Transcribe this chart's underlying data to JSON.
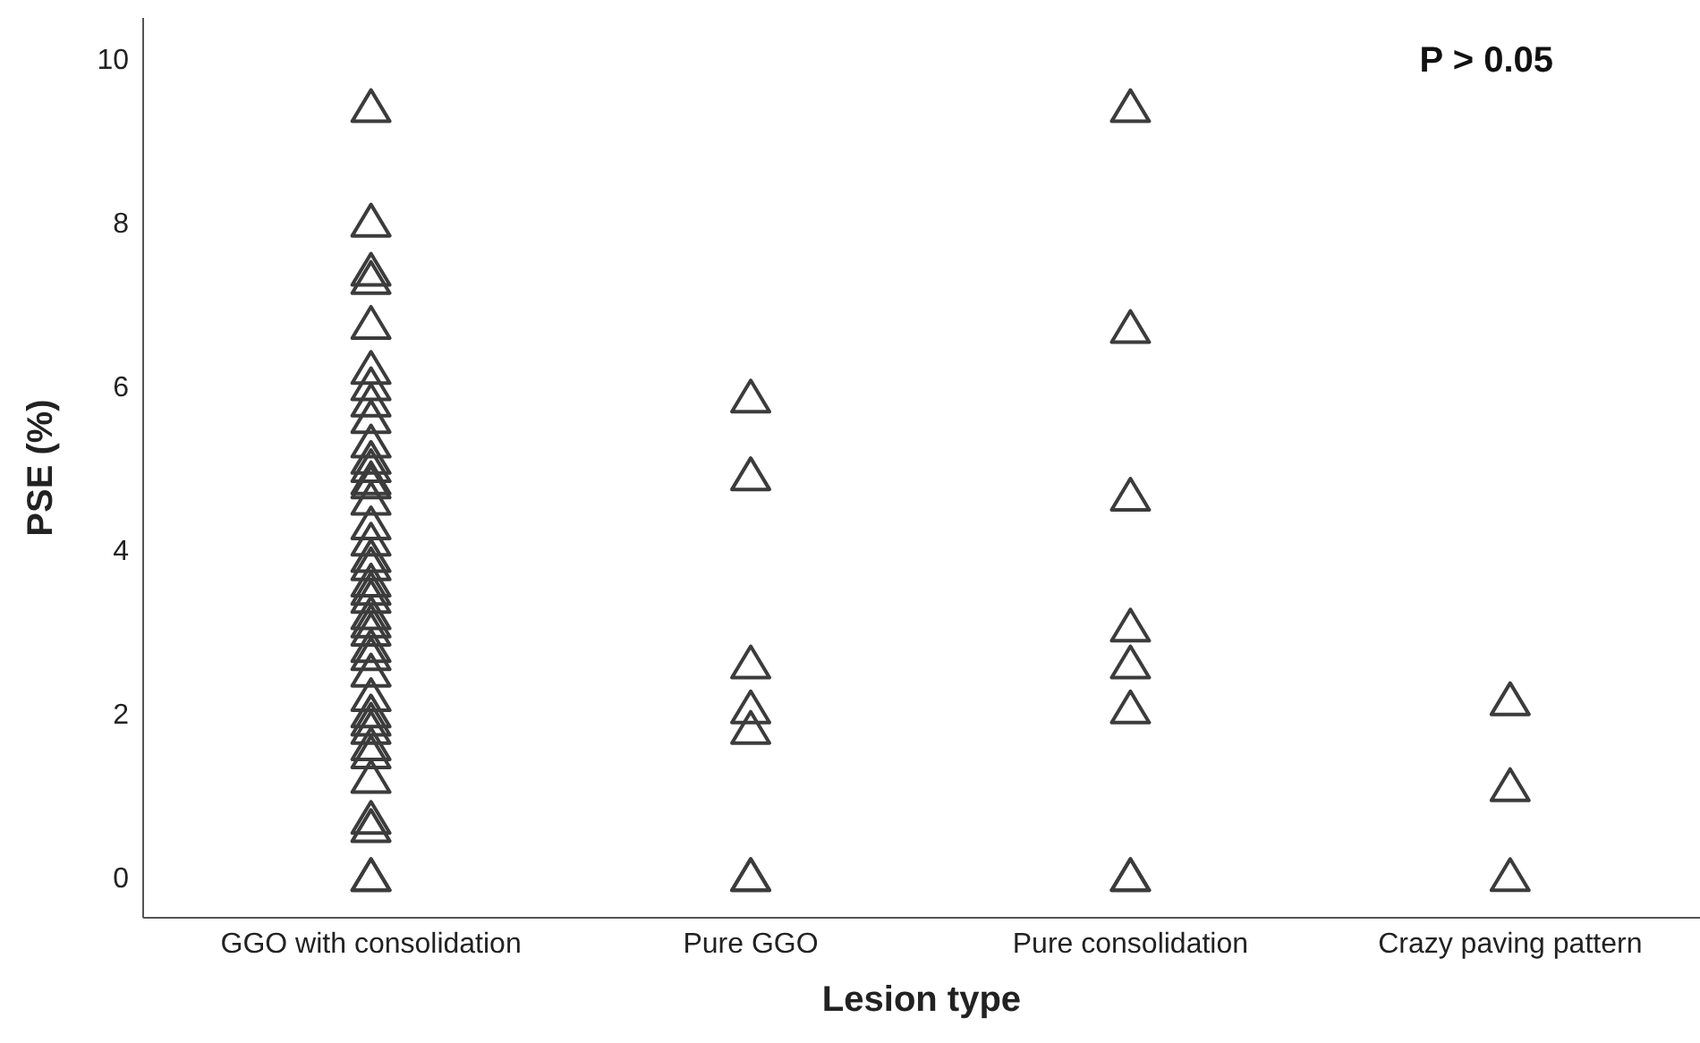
{
  "chart_data": {
    "type": "scatter",
    "xlabel": "Lesion type",
    "ylabel": "PSE  (%)",
    "categories": [
      "GGO with consolidation",
      "Pure GGO",
      "Pure consolidation",
      "Crazy paving pattern"
    ],
    "ylim": [
      -0.5,
      10.5
    ],
    "yticks": [
      0,
      2,
      4,
      6,
      8,
      10
    ],
    "grid": false,
    "legend": false,
    "marker": "triangle",
    "annotations": [
      "P > 0.05"
    ],
    "series": [
      {
        "color": "#3c3c3c",
        "x": [
          "GGO with consolidation",
          "GGO with consolidation",
          "GGO with consolidation",
          "GGO with consolidation",
          "GGO with consolidation",
          "GGO with consolidation",
          "GGO with consolidation",
          "GGO with consolidation",
          "GGO with consolidation",
          "GGO with consolidation",
          "GGO with consolidation",
          "GGO with consolidation",
          "GGO with consolidation",
          "GGO with consolidation",
          "GGO with consolidation",
          "GGO with consolidation",
          "GGO with consolidation",
          "GGO with consolidation",
          "GGO with consolidation",
          "GGO with consolidation",
          "GGO with consolidation",
          "GGO with consolidation",
          "GGO with consolidation",
          "GGO with consolidation",
          "GGO with consolidation",
          "GGO with consolidation",
          "GGO with consolidation",
          "GGO with consolidation",
          "GGO with consolidation",
          "GGO with consolidation",
          "GGO with consolidation",
          "GGO with consolidation",
          "GGO with consolidation",
          "GGO with consolidation",
          "GGO with consolidation",
          "GGO with consolidation",
          "GGO with consolidation",
          "GGO with consolidation",
          "GGO with consolidation"
        ],
        "values": [
          9.4,
          8.0,
          7.4,
          7.3,
          6.75,
          6.2,
          6.0,
          5.8,
          5.6,
          5.3,
          5.1,
          5.0,
          4.85,
          4.8,
          4.6,
          4.3,
          4.1,
          3.9,
          3.8,
          3.6,
          3.5,
          3.4,
          3.2,
          3.1,
          3.0,
          2.8,
          2.7,
          2.5,
          2.2,
          2.0,
          1.9,
          1.8,
          1.6,
          1.5,
          1.2,
          0.7,
          0.6,
          0,
          0
        ]
      },
      {
        "color": "#3c3c3c",
        "x": [
          "Pure GGO",
          "Pure GGO",
          "Pure GGO",
          "Pure GGO",
          "Pure GGO",
          "Pure GGO",
          "Pure GGO"
        ],
        "values": [
          5.85,
          4.9,
          2.6,
          2.05,
          1.8,
          0,
          0
        ]
      },
      {
        "color": "#3c3c3c",
        "x": [
          "Pure consolidation",
          "Pure consolidation",
          "Pure consolidation",
          "Pure consolidation",
          "Pure consolidation",
          "Pure consolidation",
          "Pure consolidation",
          "Pure consolidation"
        ],
        "values": [
          9.4,
          6.7,
          4.65,
          3.05,
          2.6,
          2.05,
          0,
          0
        ]
      },
      {
        "color": "#3c3c3c",
        "x": [
          "Crazy paving pattern",
          "Crazy paving pattern",
          "Crazy paving pattern"
        ],
        "values": [
          2.15,
          1.1,
          0
        ]
      }
    ]
  }
}
